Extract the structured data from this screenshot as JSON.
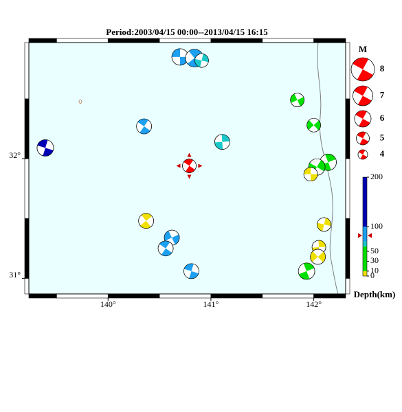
{
  "title": "Period:2003/04/15 00:00--2013/04/15 16:15",
  "map": {
    "xlim": [
      139.23,
      142.31
    ],
    "ylim": [
      30.87,
      32.97
    ],
    "xticks": [
      {
        "value": 140,
        "label": "140°"
      },
      {
        "value": 141,
        "label": "141°"
      },
      {
        "value": 142,
        "label": "142°"
      }
    ],
    "yticks": [
      {
        "value": 31,
        "label": "31°"
      },
      {
        "value": 32,
        "label": "32°"
      }
    ],
    "ocean_color": "#eaffff",
    "coast_color": "#7f7f7f",
    "events": [
      {
        "lon": 140.7,
        "lat": 32.85,
        "depth": 85,
        "mag": 6.0
      },
      {
        "lon": 140.84,
        "lat": 32.84,
        "depth": 85,
        "mag": 6.4
      },
      {
        "lon": 140.91,
        "lat": 32.82,
        "depth": 65,
        "mag": 5.2
      },
      {
        "lon": 141.84,
        "lat": 32.49,
        "depth": 35,
        "mag": 5.2
      },
      {
        "lon": 140.35,
        "lat": 32.27,
        "depth": 85,
        "mag": 5.6
      },
      {
        "lon": 141.11,
        "lat": 32.14,
        "depth": 65,
        "mag": 5.6
      },
      {
        "lon": 142.0,
        "lat": 32.28,
        "depth": 35,
        "mag": 5.2
      },
      {
        "lon": 139.39,
        "lat": 32.09,
        "depth": 150,
        "mag": 6.0
      },
      {
        "lon": 142.14,
        "lat": 31.97,
        "depth": 35,
        "mag": 6.0
      },
      {
        "lon": 142.03,
        "lat": 31.93,
        "depth": 35,
        "mag": 6.0
      },
      {
        "lon": 141.97,
        "lat": 31.87,
        "depth": 5,
        "mag": 5.2
      },
      {
        "lon": 140.37,
        "lat": 31.48,
        "depth": 5,
        "mag": 5.6
      },
      {
        "lon": 142.1,
        "lat": 31.45,
        "depth": 5,
        "mag": 5.2
      },
      {
        "lon": 140.62,
        "lat": 31.34,
        "depth": 85,
        "mag": 5.6
      },
      {
        "lon": 140.56,
        "lat": 31.25,
        "depth": 85,
        "mag": 5.6
      },
      {
        "lon": 142.05,
        "lat": 31.26,
        "depth": 5,
        "mag": 5.2
      },
      {
        "lon": 142.04,
        "lat": 31.18,
        "depth": 5,
        "mag": 5.6
      },
      {
        "lon": 140.81,
        "lat": 31.06,
        "depth": 85,
        "mag": 5.6
      },
      {
        "lon": 141.93,
        "lat": 31.06,
        "depth": 35,
        "mag": 6.0
      }
    ],
    "latest_event": {
      "lon": 140.79,
      "lat": 31.94,
      "depth": 82,
      "mag": 5.2,
      "color": "#ff0000"
    }
  },
  "legend": {
    "title": "M",
    "magnitudes": [
      8,
      7,
      6,
      5,
      4
    ],
    "color": "#ff0000"
  },
  "colorbar": {
    "label": "Depth(km)",
    "lim": [
      0,
      200
    ],
    "ticks": [
      0,
      10,
      30,
      50,
      100,
      200
    ],
    "bands": [
      {
        "from": 0,
        "to": 10,
        "color": "#f0e000"
      },
      {
        "from": 10,
        "to": 60,
        "color": "#00e000"
      },
      {
        "from": 60,
        "to": 70,
        "color": "#19c8c8"
      },
      {
        "from": 70,
        "to": 100,
        "color": "#1ea0f0"
      },
      {
        "from": 100,
        "to": 200,
        "color": "#0000b4"
      }
    ]
  }
}
